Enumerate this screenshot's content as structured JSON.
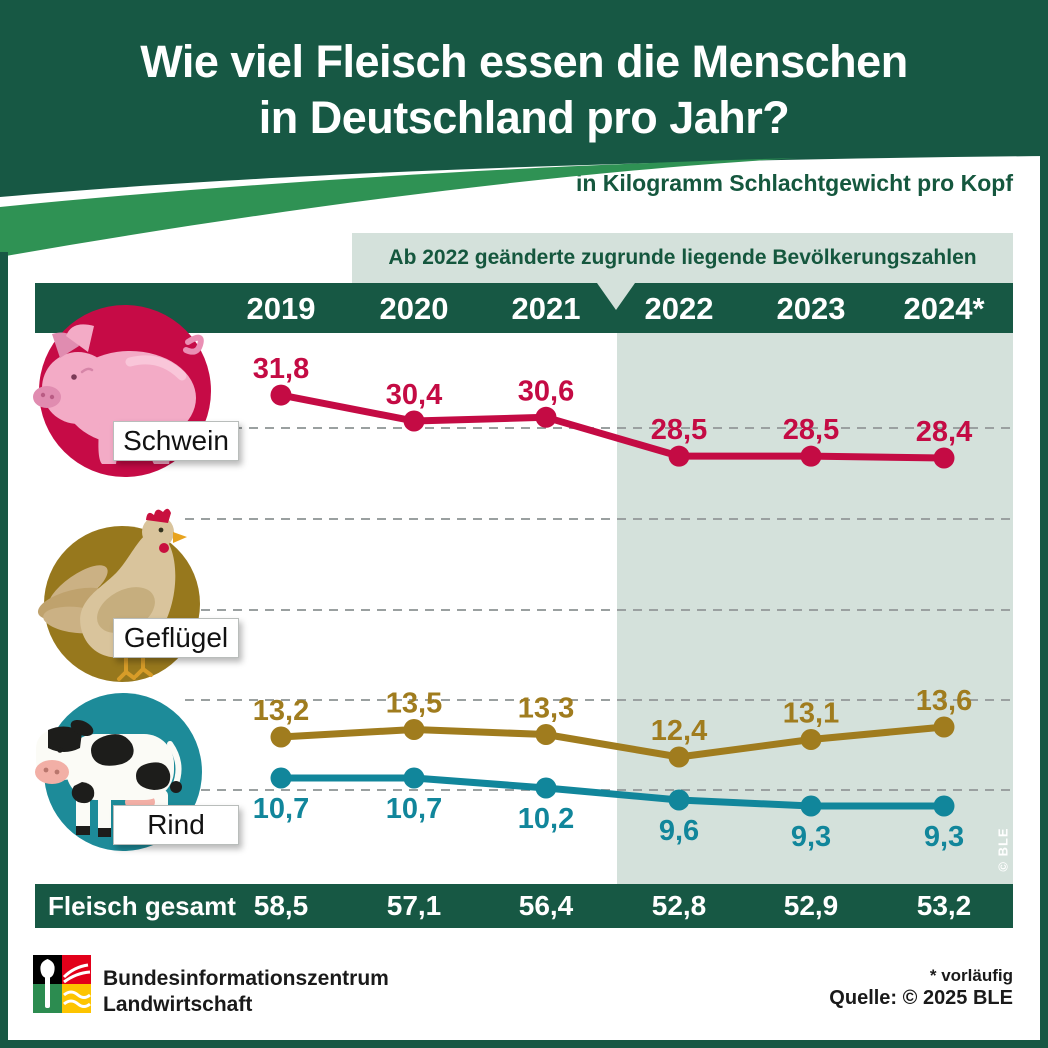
{
  "header": {
    "title_line1": "Wie viel Fleisch essen die Menschen",
    "title_line2": "in Deutschland pro Jahr?",
    "subtitle": "in Kilogramm Schlachtgewicht pro Kopf"
  },
  "note": "Ab 2022 geänderte zugrunde liegende Bevölkerungszahlen",
  "years": [
    "2019",
    "2020",
    "2021",
    "2022",
    "2023",
    "2024*"
  ],
  "chart_data": {
    "type": "line",
    "categories": [
      "2019",
      "2020",
      "2021",
      "2022",
      "2023",
      "2024"
    ],
    "title": "Wie viel Fleisch essen die Menschen in Deutschland pro Jahr?",
    "ylabel": "in Kilogramm Schlachtgewicht pro Kopf",
    "annotation": "Ab 2022 geänderte zugrunde liegende Bevölkerungszahlen",
    "highlight_from": "2022",
    "grid": "dashed-horizontal",
    "legend_position": "left-row-labels",
    "series": [
      {
        "name": "Schwein",
        "color": "#c40b44",
        "label_position": "above",
        "values": [
          31.8,
          30.4,
          30.6,
          28.5,
          28.5,
          28.4
        ],
        "labels": [
          "31,8",
          "30,4",
          "30,6",
          "28,5",
          "28,5",
          "28,4"
        ]
      },
      {
        "name": "Geflügel",
        "color": "#a07c1e",
        "label_position": "above",
        "values": [
          13.2,
          13.5,
          13.3,
          12.4,
          13.1,
          13.6
        ],
        "labels": [
          "13,2",
          "13,5",
          "13,3",
          "12,4",
          "13,1",
          "13,6"
        ]
      },
      {
        "name": "Rind",
        "color": "#11869b",
        "label_position": "below",
        "values": [
          10.7,
          10.7,
          10.2,
          9.6,
          9.3,
          9.3
        ],
        "labels": [
          "10,7",
          "10,7",
          "10,2",
          "9,6",
          "9,3",
          "9,3"
        ]
      }
    ],
    "total_row": {
      "label": "Fleisch gesamt",
      "values": [
        58.5,
        57.1,
        56.4,
        52.8,
        52.9,
        53.2
      ],
      "labels": [
        "58,5",
        "57,1",
        "56,4",
        "52,8",
        "52,9",
        "53,2"
      ]
    }
  },
  "watermark": "© BLE",
  "icons": {
    "pig": "pig-icon",
    "hen": "chicken-icon",
    "cow": "cow-icon",
    "logo": "bzl-logo"
  },
  "footer": {
    "org_line1": "Bundesinformationszentrum",
    "org_line2": "Landwirtschaft",
    "footnote": "* vorläufig",
    "source": "Quelle: © 2025 BLE"
  },
  "colors": {
    "dark_green": "#175844",
    "swoosh_green": "#2f9254",
    "band": "#d4e1db",
    "schwein": "#c40b44",
    "gefluegel": "#a07c1e",
    "rind": "#11869b",
    "gridline": "#9aa0a0"
  }
}
